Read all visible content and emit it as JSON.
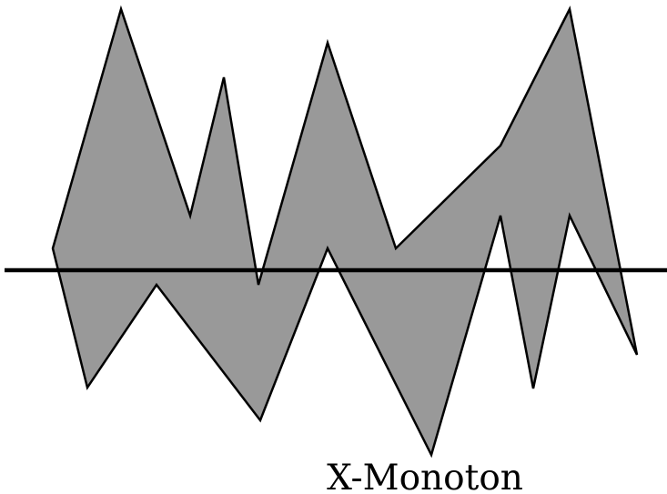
{
  "caption": "X-Monoton",
  "colors": {
    "polygon_fill": "#999999",
    "stroke": "#000000",
    "background": "#ffffff"
  }
}
